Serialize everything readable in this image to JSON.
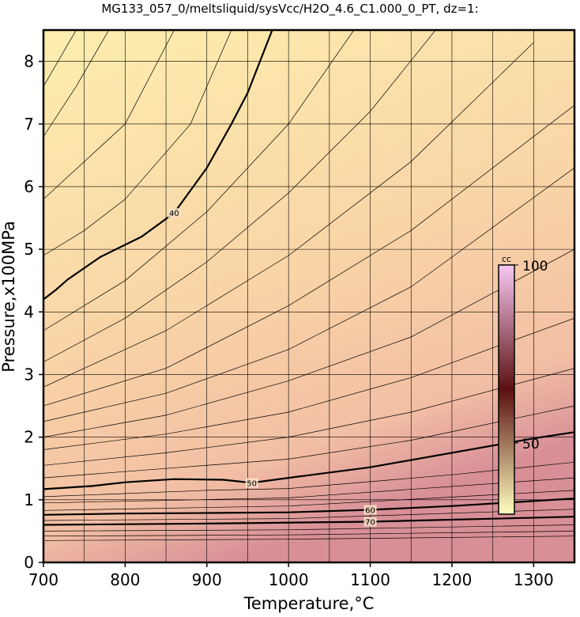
{
  "chart_data": {
    "type": "contour",
    "title": "MG133_057_0/meltsliquid/sysVcc/H2O_4.6_C1.000_0_PT, dz=1:",
    "xlabel": "Temperature,°C",
    "ylabel": "Pressure,x100MPa",
    "xlim": [
      700,
      1350
    ],
    "ylim": [
      0,
      8.5
    ],
    "xticks": [
      700,
      800,
      900,
      1000,
      1100,
      1200,
      1300
    ],
    "yticks": [
      0,
      1,
      2,
      3,
      4,
      5,
      6,
      7,
      8
    ],
    "x_gridlines": [
      700,
      750,
      800,
      850,
      900,
      950,
      1000,
      1050,
      1100,
      1150,
      1200,
      1250,
      1300,
      1350
    ],
    "grid": true,
    "line_color": "#000000",
    "colorbar": {
      "label": "cc",
      "lim": [
        30,
        100
      ],
      "ticks": [
        100,
        50
      ],
      "colors": [
        "#fefebe",
        "#5a1010",
        "#f7c8f2"
      ]
    },
    "series": [
      {
        "level": 36,
        "x": [
          700,
          740
        ],
        "y": [
          7.6,
          8.5
        ]
      },
      {
        "level": 37,
        "x": [
          700,
          740,
          780
        ],
        "y": [
          6.8,
          7.6,
          8.5
        ]
      },
      {
        "level": 38,
        "x": [
          700,
          750,
          800,
          860
        ],
        "y": [
          5.8,
          6.4,
          7.0,
          8.5
        ]
      },
      {
        "level": 39,
        "x": [
          700,
          750,
          800,
          880,
          930
        ],
        "y": [
          4.9,
          5.3,
          5.8,
          7.0,
          8.5
        ]
      },
      {
        "level": 40,
        "bold": true,
        "labeled": true,
        "x": [
          700,
          715,
          730,
          770,
          820,
          860,
          900,
          930,
          950,
          980
        ],
        "y": [
          4.2,
          4.35,
          4.52,
          4.88,
          5.2,
          5.58,
          6.3,
          7.0,
          7.5,
          8.5
        ]
      },
      {
        "level": 41,
        "x": [
          700,
          800,
          900,
          1000,
          1080
        ],
        "y": [
          3.7,
          4.5,
          5.6,
          7.0,
          8.5
        ]
      },
      {
        "level": 42,
        "x": [
          700,
          800,
          900,
          1000,
          1100,
          1180
        ],
        "y": [
          3.2,
          3.9,
          4.8,
          5.9,
          7.2,
          8.5
        ]
      },
      {
        "level": 43,
        "x": [
          700,
          850,
          1000,
          1150,
          1300
        ],
        "y": [
          2.8,
          3.7,
          4.9,
          6.4,
          8.3
        ]
      },
      {
        "level": 44,
        "x": [
          700,
          850,
          1000,
          1150,
          1350
        ],
        "y": [
          2.5,
          3.1,
          4.1,
          5.3,
          7.3
        ]
      },
      {
        "level": 45,
        "x": [
          700,
          850,
          1000,
          1150,
          1350
        ],
        "y": [
          2.25,
          2.7,
          3.4,
          4.4,
          6.3
        ]
      },
      {
        "level": 46,
        "x": [
          700,
          850,
          1000,
          1150,
          1350
        ],
        "y": [
          2.0,
          2.35,
          2.9,
          3.6,
          5.0
        ]
      },
      {
        "level": 47,
        "x": [
          700,
          850,
          1000,
          1150,
          1350
        ],
        "y": [
          1.8,
          2.05,
          2.4,
          2.95,
          3.9
        ]
      },
      {
        "level": 48,
        "x": [
          700,
          850,
          1000,
          1150,
          1350
        ],
        "y": [
          1.55,
          1.75,
          2.0,
          2.4,
          3.1
        ]
      },
      {
        "level": 49,
        "x": [
          700,
          850,
          1000,
          1150,
          1350
        ],
        "y": [
          1.35,
          1.5,
          1.65,
          1.95,
          2.5
        ]
      },
      {
        "level": 50,
        "bold": true,
        "labeled": true,
        "x": [
          700,
          760,
          800,
          860,
          920,
          955,
          1000,
          1100,
          1200,
          1300,
          1350
        ],
        "y": [
          1.17,
          1.22,
          1.28,
          1.33,
          1.32,
          1.27,
          1.35,
          1.52,
          1.75,
          1.98,
          2.08
        ]
      },
      {
        "level": 52,
        "x": [
          700,
          900,
          1000,
          1200,
          1350
        ],
        "y": [
          1.05,
          1.15,
          1.18,
          1.4,
          1.6
        ]
      },
      {
        "level": 55,
        "x": [
          700,
          1000,
          1350
        ],
        "y": [
          0.95,
          1.03,
          1.35
        ]
      },
      {
        "level": 58,
        "x": [
          700,
          1000,
          1350
        ],
        "y": [
          0.83,
          0.9,
          1.15
        ]
      },
      {
        "level": 60,
        "bold": true,
        "labeled": true,
        "x": [
          700,
          800,
          900,
          1000,
          1100,
          1200,
          1300,
          1350
        ],
        "y": [
          0.76,
          0.78,
          0.79,
          0.8,
          0.84,
          0.9,
          0.98,
          1.02
        ]
      },
      {
        "level": 65,
        "x": [
          700,
          1000,
          1350
        ],
        "y": [
          0.67,
          0.7,
          0.85
        ]
      },
      {
        "level": 70,
        "bold": true,
        "labeled": true,
        "x": [
          700,
          900,
          1100,
          1350
        ],
        "y": [
          0.6,
          0.62,
          0.65,
          0.73
        ]
      },
      {
        "level": 80,
        "x": [
          700,
          1000,
          1350
        ],
        "y": [
          0.5,
          0.52,
          0.6
        ]
      },
      {
        "level": 90,
        "x": [
          700,
          1000,
          1350
        ],
        "y": [
          0.42,
          0.44,
          0.5
        ]
      },
      {
        "level": 100,
        "x": [
          700,
          1000,
          1350
        ],
        "y": [
          0.35,
          0.37,
          0.42
        ]
      }
    ]
  }
}
